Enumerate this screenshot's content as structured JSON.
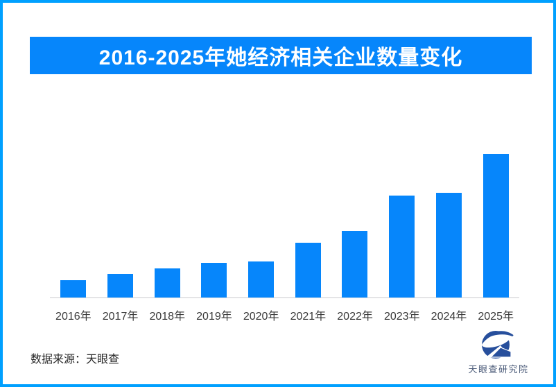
{
  "frame": {
    "border_color": "#00a0ff",
    "background": "#ffffff"
  },
  "banner": {
    "title": "2016-2025年她经济相关企业数量变化",
    "bg_color": "#0686fb",
    "text_color": "#ffffff"
  },
  "chart_data": {
    "type": "bar",
    "title": "2016-2025年她经济相关企业数量变化",
    "categories": [
      "2016年",
      "2017年",
      "2018年",
      "2019年",
      "2020年",
      "2021年",
      "2022年",
      "2023年",
      "2024年",
      "2025年"
    ],
    "values": [
      12,
      16.5,
      20.5,
      24,
      25,
      38,
      46.5,
      71,
      73,
      100
    ],
    "value_scale": "relative units estimated from bar heights; tallest bar (2025年) = 100; chart shows no y-axis, gridlines or data labels",
    "bar_color": "#0686fb",
    "xlabel": "",
    "ylabel": "",
    "grid": false,
    "legend": false,
    "axis_line_color": "#e4e4e6"
  },
  "footer": {
    "source_text": "数据来源：天眼查"
  },
  "logo": {
    "label": "天眼查研究院",
    "icon": "tianyancha-eagle-icon",
    "icon_color": "#274f9c",
    "text_color": "#4a5a78"
  }
}
